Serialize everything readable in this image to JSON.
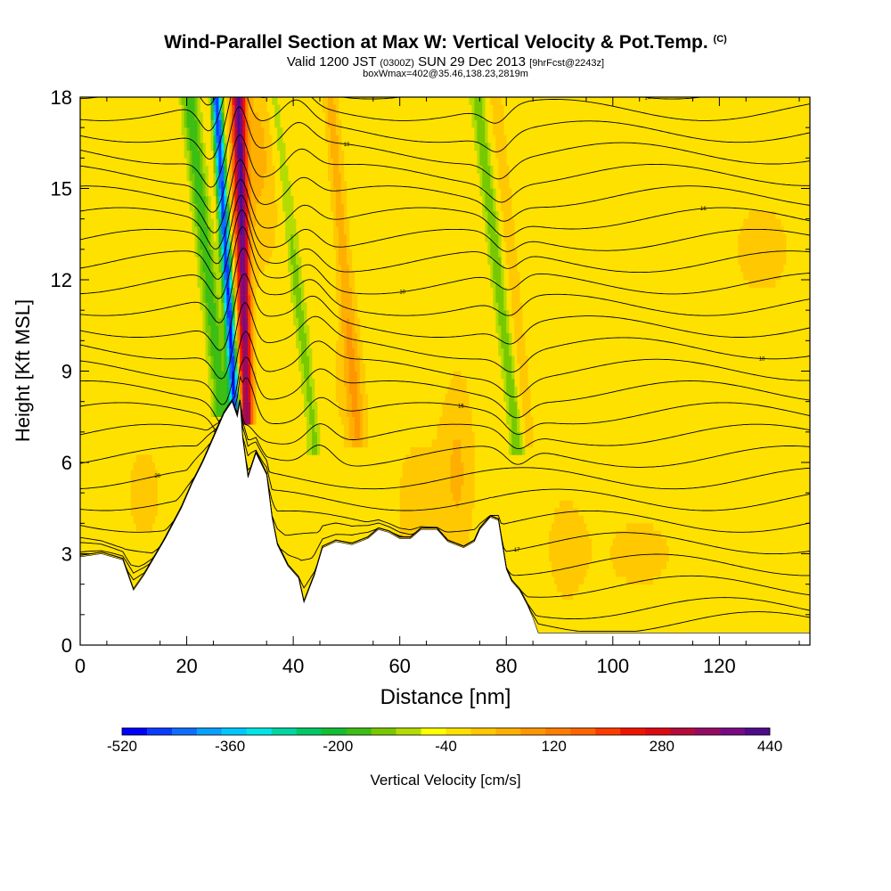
{
  "header": {
    "title_main": "Wind-Parallel Section at Max W: Vertical Velocity & Pot.Temp.",
    "title_c": "(C)",
    "valid_prefix": "Valid 1200 JST",
    "valid_utc": "(0300Z)",
    "valid_date": "SUN 29 Dec 2013",
    "forecast_info": "[9hrFcst@2243z]",
    "box_info": "boxWmax=402@35.46,138.23,2819m"
  },
  "chart_data": {
    "type": "heatmap",
    "title": "Wind-Parallel Section at Max W: Vertical Velocity & Pot.Temp.",
    "xlabel": "Distance [nm]",
    "ylabel": "Height [Kft MSL]",
    "xlim": [
      0,
      137
    ],
    "ylim": [
      0,
      18
    ],
    "x_ticks": [
      0,
      20,
      40,
      60,
      80,
      100,
      120
    ],
    "y_ticks": [
      0,
      3,
      6,
      9,
      12,
      15,
      18
    ],
    "grid": false,
    "colorbar": {
      "label": "Vertical Velocity [cm/s]",
      "min": -520,
      "max": 440,
      "step": 40,
      "tick_labels": [
        "-520",
        "-360",
        "-200",
        "-40",
        "120",
        "280",
        "440"
      ],
      "tick_values": [
        -520,
        -360,
        -200,
        -40,
        120,
        280,
        440
      ],
      "colors": [
        "#0000ff",
        "#0a3cff",
        "#0f6eff",
        "#0aa0ff",
        "#00c8ff",
        "#00e6e6",
        "#00d7a0",
        "#00c864",
        "#14be32",
        "#3cbe14",
        "#78c800",
        "#b4dc00",
        "#ffff00",
        "#ffe100",
        "#ffc800",
        "#ffaf00",
        "#ff9600",
        "#ff7d00",
        "#ff6400",
        "#ff3c00",
        "#f01400",
        "#dc0a14",
        "#b40a3c",
        "#960a64",
        "#780a82",
        "#500a8c"
      ],
      "placement": "bottom"
    },
    "background_range_cm_s": [
      -40,
      40
    ],
    "updraft_core": {
      "x_nm": 31,
      "top_kft": 18,
      "base_kft": 7.5,
      "max_cm_s": 402
    },
    "downdraft_core": {
      "x_nm": 29,
      "top_kft": 18,
      "base_kft": 7.8,
      "min_cm_s": -520
    },
    "theta_contours_C": {
      "label_values": [
        "10",
        "14",
        "15",
        "16",
        "17",
        "18",
        "19",
        "20"
      ],
      "level_count": 26
    },
    "terrain_kft": [
      [
        0,
        2.9
      ],
      [
        4,
        3.0
      ],
      [
        8,
        2.8
      ],
      [
        10,
        1.8
      ],
      [
        12,
        2.3
      ],
      [
        16,
        3.5
      ],
      [
        19,
        4.5
      ],
      [
        21,
        5.3
      ],
      [
        23,
        6.0
      ],
      [
        25,
        6.8
      ],
      [
        27,
        7.6
      ],
      [
        28.5,
        8.0
      ],
      [
        29.5,
        7.5
      ],
      [
        30,
        8.0
      ],
      [
        30.5,
        6.8
      ],
      [
        31.5,
        5.5
      ],
      [
        33,
        6.3
      ],
      [
        35,
        5.6
      ],
      [
        36,
        4.2
      ],
      [
        37,
        3.3
      ],
      [
        39,
        2.6
      ],
      [
        41,
        2.2
      ],
      [
        42,
        1.4
      ],
      [
        44,
        2.3
      ],
      [
        45.5,
        3.2
      ],
      [
        48,
        3.4
      ],
      [
        51,
        3.3
      ],
      [
        54,
        3.5
      ],
      [
        56,
        3.8
      ],
      [
        58,
        3.7
      ],
      [
        60,
        3.5
      ],
      [
        62,
        3.5
      ],
      [
        64,
        3.8
      ],
      [
        67,
        3.8
      ],
      [
        69,
        3.4
      ],
      [
        72,
        3.2
      ],
      [
        74,
        3.4
      ],
      [
        75,
        3.8
      ],
      [
        77,
        4.2
      ],
      [
        78.5,
        4.1
      ],
      [
        80,
        2.5
      ],
      [
        81,
        2.1
      ],
      [
        82.5,
        1.8
      ],
      [
        84,
        1.3
      ],
      [
        85,
        0.9
      ],
      [
        86,
        0.4
      ],
      [
        88,
        0.4
      ],
      [
        92,
        0.4
      ],
      [
        100,
        0.4
      ],
      [
        110,
        0.4
      ],
      [
        120,
        0.4
      ],
      [
        137,
        0.4
      ]
    ]
  }
}
